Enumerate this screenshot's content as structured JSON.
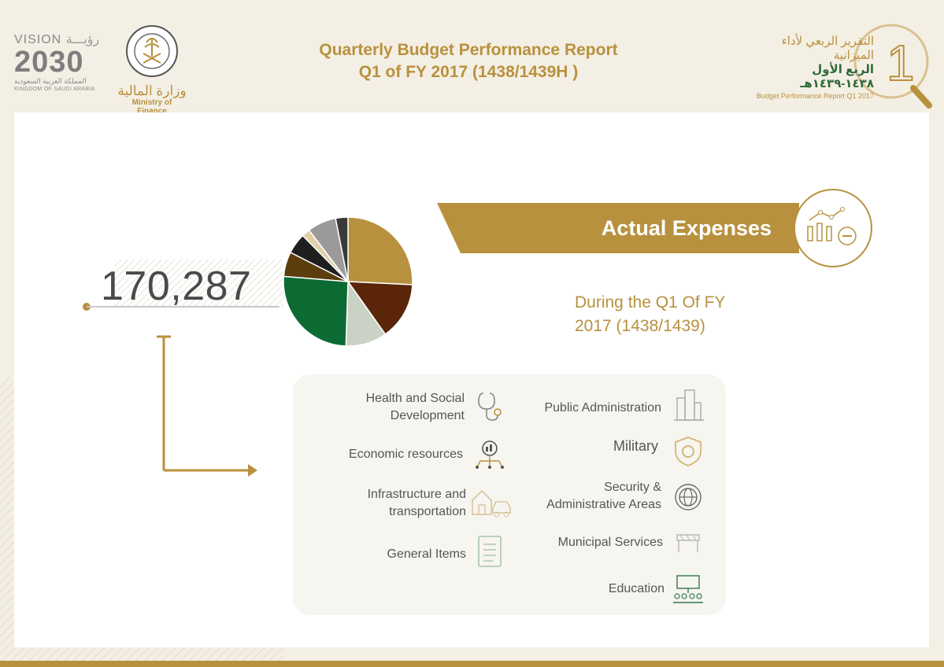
{
  "header": {
    "title_line1": "Quarterly Budget Performance Report",
    "title_line2": "Q1 of FY 2017 (1438/1439H )"
  },
  "vision_logo": {
    "line1": "VISION",
    "line1_ar": "رؤيـــة",
    "line2": "2030",
    "line3": "المملكة العربية السعودية",
    "line4": "KINGDOM OF SAUDI ARABIA"
  },
  "ministry_logo": {
    "seal_text": "MINISTRY OF FINANCE",
    "name_ar": "وزارة المالية",
    "name_en": "Ministry of Finance"
  },
  "report_badge": {
    "title_ar": "التقرير الربعي لأداء الميزانية",
    "subtitle_ar": "الربع الأول ١٤٣٨-١٤٣٩هـ",
    "subtitle_en": "Budget Performance Report Q1 2017",
    "emblem": "1"
  },
  "main": {
    "total_expenses": "170,287",
    "banner_title": "Actual Expenses",
    "period_line1": "During the Q1 Of FY",
    "period_line2": "2017 (1438/1439)"
  },
  "legend": {
    "left": [
      {
        "label_line1": "Health and Social",
        "label_line2": "Development",
        "icon": "stethoscope-icon"
      },
      {
        "label_line1": "Economic resources",
        "label_line2": "",
        "icon": "economic-network-icon"
      },
      {
        "label_line1": "Infrastructure and",
        "label_line2": "transportation",
        "icon": "house-car-icon"
      },
      {
        "label_line1": "General Items",
        "label_line2": "",
        "icon": "checklist-icon"
      }
    ],
    "right": [
      {
        "label_line1": "Public Administration",
        "label_line2": "",
        "icon": "buildings-icon"
      },
      {
        "label_line1": "Military",
        "label_line2": "",
        "icon": "shield-icon"
      },
      {
        "label_line1": "Security &",
        "label_line2": "Administrative Areas",
        "icon": "globe-icon"
      },
      {
        "label_line1": "Municipal Services",
        "label_line2": "",
        "icon": "barrier-icon"
      },
      {
        "label_line1": "Education",
        "label_line2": "",
        "icon": "classroom-icon"
      }
    ]
  },
  "chart_data": {
    "type": "pie",
    "total": 170287,
    "slices": [
      {
        "value": 25,
        "color": "#b8913e"
      },
      {
        "value": 14,
        "color": "#5a2508"
      },
      {
        "value": 10,
        "color": "#c9d2c4"
      },
      {
        "value": 25,
        "color": "#0b6b33"
      },
      {
        "value": 6,
        "color": "#5c3d0e"
      },
      {
        "value": 5,
        "color": "#1f1f1f"
      },
      {
        "value": 2,
        "color": "#e1cfa8"
      },
      {
        "value": 7,
        "color": "#9a9a9a"
      },
      {
        "value": 3,
        "color": "#3a3a3a"
      }
    ]
  },
  "colors": {
    "gold": "#b8913e",
    "green": "#2f6b3a",
    "page_bg": "#f4efe4"
  }
}
